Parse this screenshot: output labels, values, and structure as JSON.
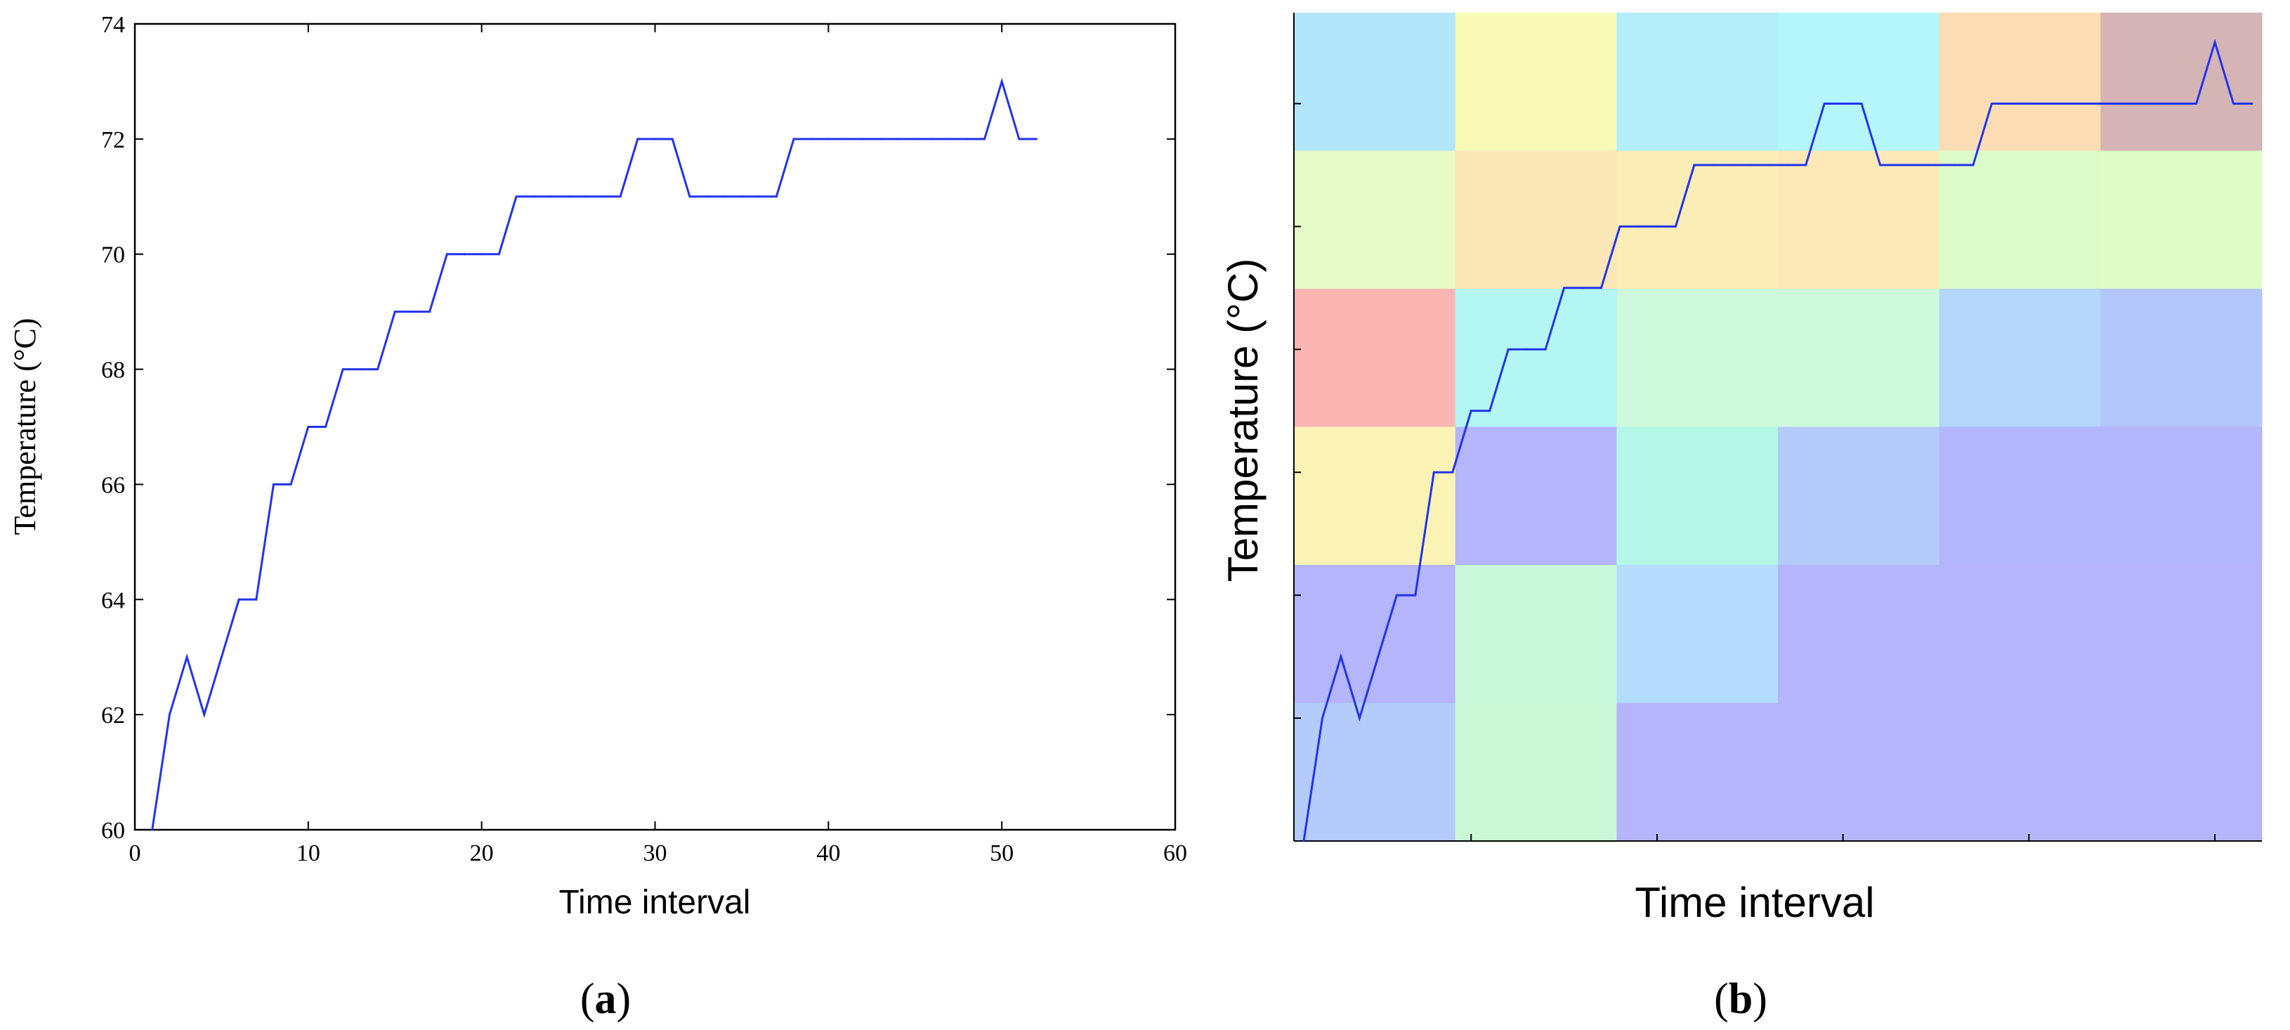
{
  "chart_data": [
    {
      "type": "line",
      "panel_label": "(a)",
      "panel_letter": "a",
      "title": "",
      "xlabel": "Time interval",
      "ylabel": "Temperature (°C)",
      "xlim": [
        0,
        60
      ],
      "ylim": [
        60,
        74
      ],
      "xticks": [
        0,
        10,
        20,
        30,
        40,
        50,
        60
      ],
      "yticks": [
        60,
        62,
        64,
        66,
        68,
        70,
        72,
        74
      ],
      "grid": false,
      "line_color": "#2233ee",
      "series": [
        {
          "name": "Temperature",
          "x": [
            1,
            2,
            3,
            4,
            5,
            6,
            7,
            8,
            9,
            10,
            11,
            12,
            13,
            14,
            15,
            16,
            17,
            18,
            19,
            20,
            21,
            22,
            23,
            24,
            25,
            26,
            27,
            28,
            29,
            30,
            31,
            32,
            33,
            34,
            35,
            36,
            37,
            38,
            39,
            40,
            41,
            42,
            43,
            44,
            45,
            46,
            47,
            48,
            49,
            50,
            51,
            52
          ],
          "values": [
            60,
            62,
            63,
            62,
            63,
            64,
            64,
            66,
            66,
            67,
            67,
            68,
            68,
            68,
            69,
            69,
            69,
            70,
            70,
            70,
            70,
            71,
            71,
            71,
            71,
            71,
            71,
            71,
            72,
            72,
            72,
            71,
            71,
            71,
            71,
            71,
            71,
            72,
            72,
            72,
            72,
            72,
            72,
            72,
            72,
            72,
            72,
            72,
            72,
            73,
            72,
            72
          ]
        }
      ]
    },
    {
      "type": "heatmap",
      "panel_label": "(b)",
      "panel_letter": "b",
      "title": "",
      "xlabel": "Time interval",
      "ylabel": "Temperature (°C)",
      "rows": 6,
      "cols": 6,
      "cell_colors": [
        [
          "#b3e5fb",
          "#f8fbb6",
          "#b4eefb",
          "#b4f6fb",
          "#fbdcb3",
          "#d5b4b6"
        ],
        [
          "#e6fbc5",
          "#fbe7b8",
          "#fbedb6",
          "#fbe9b8",
          "#dbfbc8",
          "#defbc8"
        ],
        [
          "#fbb6b4",
          "#b4f6f4",
          "#cef9dd",
          "#cff9dc",
          "#b4d6fb",
          "#b4c6fb"
        ],
        [
          "#fbf3b6",
          "#b4b5fb",
          "#b5f7e6",
          "#b5cbfb",
          "#b4b6fb",
          "#b4b6fb"
        ],
        [
          "#b4b5fb",
          "#c9f9da",
          "#b4dcfb",
          "#b4b5fb",
          "#b4b5fb",
          "#b4b5fb"
        ],
        [
          "#b4cbfb",
          "#cbf9d8",
          "#b4b5fb",
          "#b4b5fb",
          "#b4b5fb",
          "#b4b5fb"
        ]
      ],
      "overlay_series": {
        "name": "Temperature",
        "line_color": "#2233ee",
        "x": [
          1,
          2,
          3,
          4,
          5,
          6,
          7,
          8,
          9,
          10,
          11,
          12,
          13,
          14,
          15,
          16,
          17,
          18,
          19,
          20,
          21,
          22,
          23,
          24,
          25,
          26,
          27,
          28,
          29,
          30,
          31,
          32,
          33,
          34,
          35,
          36,
          37,
          38,
          39,
          40,
          41,
          42,
          43,
          44,
          45,
          46,
          47,
          48,
          49,
          50,
          51,
          52
        ],
        "values": [
          60,
          62,
          63,
          62,
          63,
          64,
          64,
          66,
          66,
          67,
          67,
          68,
          68,
          68,
          69,
          69,
          69,
          70,
          70,
          70,
          70,
          71,
          71,
          71,
          71,
          71,
          71,
          71,
          72,
          72,
          72,
          71,
          71,
          71,
          71,
          71,
          71,
          72,
          72,
          72,
          72,
          72,
          72,
          72,
          72,
          72,
          72,
          72,
          72,
          73,
          72,
          72
        ]
      }
    }
  ]
}
